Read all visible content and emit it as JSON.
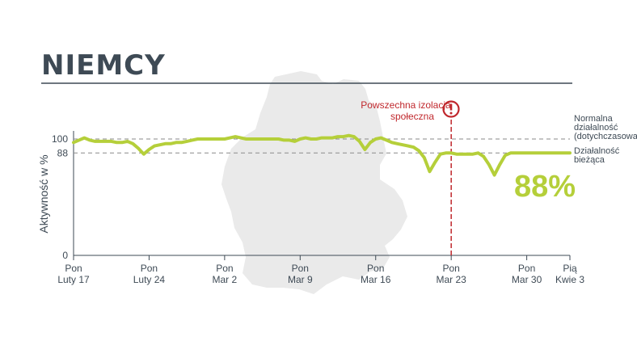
{
  "title": "NIEMCY",
  "colors": {
    "title": "#3e4a55",
    "line": "#b5cf3a",
    "event": "#c0282d",
    "map": "#eaeaea",
    "axis": "#3e4a55",
    "reference": "#8a8a8a"
  },
  "icons": {
    "event_marker": "exclamation-circle-icon",
    "background": "germany-map-silhouette"
  },
  "chart_data": {
    "type": "line",
    "title": "NIEMCY",
    "ylabel": "Aktywność w %",
    "xlabel": "",
    "ylim": [
      0,
      100
    ],
    "yticks": [
      0,
      88,
      100
    ],
    "grid": false,
    "x_ticks": [
      {
        "day": 0,
        "line1": "Pon",
        "line2": "Luty 17"
      },
      {
        "day": 7,
        "line1": "Pon",
        "line2": "Luty 24"
      },
      {
        "day": 14,
        "line1": "Pon",
        "line2": "Mar 2"
      },
      {
        "day": 21,
        "line1": "Pon",
        "line2": "Mar 9"
      },
      {
        "day": 28,
        "line1": "Pon",
        "line2": "Mar 16"
      },
      {
        "day": 35,
        "line1": "Pon",
        "line2": "Mar 23"
      },
      {
        "day": 42,
        "line1": "Pon",
        "line2": "Mar 30"
      },
      {
        "day": 46,
        "line1": "Pią",
        "line2": "Kwie 3"
      }
    ],
    "series": [
      {
        "x": [
          0,
          0.5,
          1,
          1.5,
          2,
          2.5,
          3,
          3.5,
          4,
          4.5,
          5,
          5.5,
          6,
          6.5,
          7,
          7.5,
          8,
          8.5,
          9,
          9.5,
          10,
          10.5,
          11,
          11.5,
          12,
          12.5,
          13,
          13.5,
          14,
          14.5,
          15,
          15.5,
          16,
          16.5,
          17,
          17.5,
          18,
          18.5,
          19,
          19.5,
          20,
          20.5,
          21,
          21.5,
          22,
          22.5,
          23,
          23.5,
          24,
          24.5,
          25,
          25.5,
          26,
          26.5,
          27,
          27.5,
          28,
          28.5,
          29,
          29.5,
          30,
          30.5,
          31,
          31.5,
          32,
          32.5,
          33,
          33.5,
          34,
          34.5,
          35,
          35.5,
          36,
          36.5,
          37,
          37.5,
          38,
          38.5,
          39,
          39.5,
          40,
          40.5,
          41,
          41.5,
          42,
          42.5,
          43,
          43.5,
          44,
          44.5,
          45,
          45.5,
          46
        ],
        "values": [
          97,
          99,
          101,
          99,
          98,
          98,
          98,
          98,
          97,
          97,
          98,
          96,
          92,
          87,
          91,
          94,
          95,
          96,
          96,
          97,
          97,
          98,
          99,
          100,
          100,
          100,
          100,
          100,
          100,
          101,
          102,
          101,
          100,
          100,
          100,
          100,
          100,
          100,
          100,
          99,
          99,
          98,
          100,
          101,
          100,
          100,
          101,
          101,
          101,
          102,
          102,
          103,
          102,
          98,
          91,
          97,
          100,
          101,
          99,
          97,
          96,
          95,
          94,
          93,
          90,
          84,
          72,
          80,
          87,
          88,
          88,
          87,
          87,
          87,
          87,
          88,
          85,
          78,
          69,
          78,
          86,
          88,
          88,
          88,
          88,
          88,
          88,
          88,
          88,
          88,
          88,
          88,
          88
        ]
      }
    ],
    "reference_lines": [
      {
        "value": 100,
        "label_lines": [
          "Normalna",
          "działalność",
          "(dotychczasowa)"
        ]
      },
      {
        "value": 88,
        "label_lines": [
          "Działalność",
          "bieżąca"
        ]
      }
    ],
    "event": {
      "day": 35,
      "label_lines": [
        "Powszechna izolacja",
        "społeczna"
      ]
    },
    "big_label": "88%"
  }
}
